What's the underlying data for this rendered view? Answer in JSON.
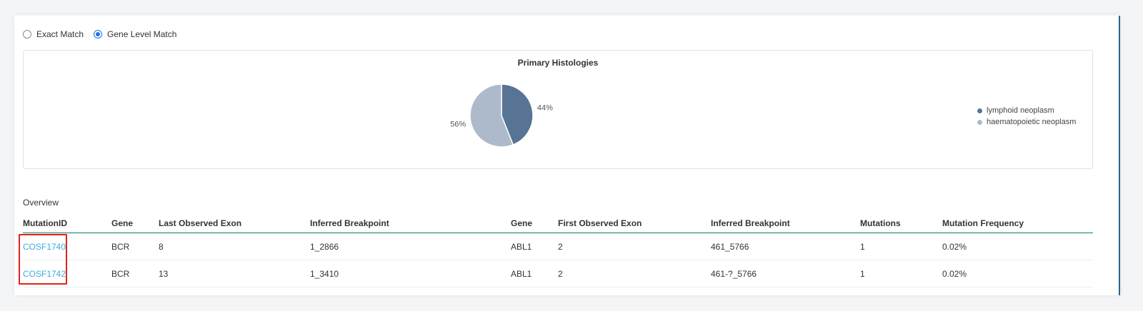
{
  "match_options": [
    {
      "label": "Exact Match",
      "checked": false
    },
    {
      "label": "Gene Level Match",
      "checked": true
    }
  ],
  "chart": {
    "title": "Primary Histologies"
  },
  "chart_data": {
    "type": "pie",
    "title": "Primary Histologies",
    "slices": [
      {
        "label": "lymphoid neoplasm",
        "value": 44,
        "display": "44%",
        "color": "#587494"
      },
      {
        "label": "haematopoietic neoplasm",
        "value": 56,
        "display": "56%",
        "color": "#adbacb"
      }
    ],
    "legend_position": "right"
  },
  "overview": {
    "label": "Overview",
    "columns": [
      "MutationID",
      "Gene",
      "Last Observed Exon",
      "Inferred Breakpoint",
      "Gene",
      "First Observed Exon",
      "Inferred Breakpoint",
      "Mutations",
      "Mutation Frequency"
    ],
    "rows": [
      [
        "COSF1740",
        "BCR",
        "8",
        "1_2866",
        "ABL1",
        "2",
        "461_5766",
        "1",
        "0.02%"
      ],
      [
        "COSF1742",
        "BCR",
        "13",
        "1_3410",
        "ABL1",
        "2",
        "461-?_5766",
        "1",
        "0.02%"
      ]
    ]
  }
}
